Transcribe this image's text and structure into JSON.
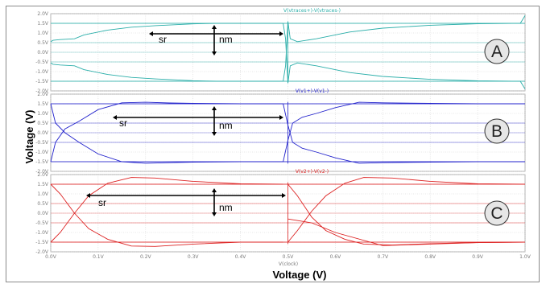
{
  "chart_data": {
    "type": "line",
    "title": "",
    "xlabel": "Voltage (V)",
    "ylabel": "Voltage (V)",
    "x_axis_caption": "V(clock)",
    "xlim": [
      0,
      1
    ],
    "ylim": [
      -2,
      2
    ],
    "grid": true,
    "x_ticks": [
      "0.0V",
      "0.1V",
      "0.2V",
      "0.3V",
      "0.4V",
      "0.5V",
      "0.6V",
      "0.7V",
      "0.8V",
      "0.9V",
      "1.0V"
    ],
    "y_ticks": [
      "2.0V",
      "1.5V",
      "1.0V",
      "0.5V",
      "0.0V",
      "-0.5V",
      "-1.0V",
      "-1.5V",
      "-2.0V"
    ],
    "panels": [
      {
        "badge": "A",
        "trace_label": "V(vtraces+)-V(vtraces-)",
        "color": "#2aaea9",
        "annotations": {
          "sr": "sr",
          "nm": "nm"
        },
        "series": [
          {
            "values": [
              [
                0,
                0.55
              ],
              [
                0.005,
                0.62
              ],
              [
                0.02,
                0.66
              ],
              [
                0.05,
                0.7
              ],
              [
                0.07,
                0.9
              ],
              [
                0.12,
                1.15
              ],
              [
                0.17,
                1.3
              ],
              [
                0.22,
                1.38
              ],
              [
                0.3,
                1.47
              ],
              [
                0.35,
                1.5
              ],
              [
                0.49,
                1.5
              ]
            ]
          },
          {
            "values": [
              [
                0,
                -0.55
              ],
              [
                0.005,
                -0.62
              ],
              [
                0.02,
                -0.66
              ],
              [
                0.05,
                -0.7
              ],
              [
                0.07,
                -0.9
              ],
              [
                0.12,
                -1.15
              ],
              [
                0.17,
                -1.3
              ],
              [
                0.22,
                -1.38
              ],
              [
                0.3,
                -1.47
              ],
              [
                0.35,
                -1.5
              ],
              [
                0.49,
                -1.5
              ]
            ]
          },
          {
            "values": [
              [
                0.49,
                1.5
              ],
              [
                0.495,
                0.7
              ],
              [
                0.5,
                -1.6
              ],
              [
                0.505,
                -0.7
              ],
              [
                0.52,
                -0.55
              ],
              [
                0.56,
                -0.7
              ],
              [
                0.63,
                -1.05
              ],
              [
                0.7,
                -1.25
              ],
              [
                0.8,
                -1.4
              ],
              [
                0.9,
                -1.48
              ],
              [
                0.99,
                -1.5
              ],
              [
                1.0,
                -1.9
              ]
            ]
          },
          {
            "values": [
              [
                0.49,
                -1.5
              ],
              [
                0.495,
                -0.7
              ],
              [
                0.5,
                1.6
              ],
              [
                0.505,
                0.7
              ],
              [
                0.52,
                0.55
              ],
              [
                0.56,
                0.7
              ],
              [
                0.63,
                1.05
              ],
              [
                0.7,
                1.25
              ],
              [
                0.8,
                1.4
              ],
              [
                0.9,
                1.48
              ],
              [
                0.99,
                1.5
              ],
              [
                1.0,
                1.9
              ]
            ]
          }
        ]
      },
      {
        "badge": "B",
        "trace_label": "V(v1+)-V(v1-)",
        "color": "#2222cc",
        "annotations": {
          "sr": "sr",
          "nm": "nm"
        },
        "series": [
          {
            "values": [
              [
                0,
                1.5
              ],
              [
                0.01,
                0.5
              ],
              [
                0.03,
                0.0
              ],
              [
                0.06,
                -0.5
              ],
              [
                0.1,
                -1.1
              ],
              [
                0.15,
                -1.5
              ],
              [
                0.2,
                -1.58
              ],
              [
                0.25,
                -1.55
              ],
              [
                0.3,
                -1.52
              ],
              [
                0.4,
                -1.5
              ],
              [
                0.49,
                -1.5
              ]
            ]
          },
          {
            "values": [
              [
                0,
                -1.5
              ],
              [
                0.01,
                -0.5
              ],
              [
                0.03,
                0.2
              ],
              [
                0.06,
                0.6
              ],
              [
                0.1,
                1.2
              ],
              [
                0.15,
                1.55
              ],
              [
                0.2,
                1.58
              ],
              [
                0.25,
                1.54
              ],
              [
                0.3,
                1.52
              ],
              [
                0.4,
                1.5
              ],
              [
                0.49,
                1.5
              ]
            ]
          },
          {
            "values": [
              [
                0.49,
                1.5
              ],
              [
                0.5,
                0.4
              ],
              [
                0.51,
                -0.5
              ],
              [
                0.53,
                -0.8
              ],
              [
                0.56,
                -1.0
              ],
              [
                0.6,
                -1.3
              ],
              [
                0.65,
                -1.58
              ],
              [
                0.7,
                -1.55
              ],
              [
                0.8,
                -1.52
              ],
              [
                0.9,
                -1.5
              ],
              [
                1.0,
                -1.5
              ]
            ]
          },
          {
            "values": [
              [
                0.49,
                -1.5
              ],
              [
                0.5,
                -0.4
              ],
              [
                0.51,
                0.5
              ],
              [
                0.53,
                0.8
              ],
              [
                0.56,
                1.0
              ],
              [
                0.6,
                1.3
              ],
              [
                0.65,
                1.58
              ],
              [
                0.7,
                1.55
              ],
              [
                0.8,
                1.52
              ],
              [
                0.9,
                1.5
              ],
              [
                1.0,
                1.5
              ]
            ]
          }
        ]
      },
      {
        "badge": "C",
        "trace_label": "V(v2+)-V(v2-)",
        "color": "#dd2222",
        "annotations": {
          "sr": "sr",
          "nm": "nm"
        },
        "series": [
          {
            "values": [
              [
                0,
                1.5
              ],
              [
                0.02,
                1.0
              ],
              [
                0.05,
                0.0
              ],
              [
                0.08,
                -0.8
              ],
              [
                0.12,
                -1.35
              ],
              [
                0.17,
                -1.7
              ],
              [
                0.22,
                -1.72
              ],
              [
                0.3,
                -1.6
              ],
              [
                0.4,
                -1.5
              ],
              [
                0.49,
                -1.5
              ]
            ]
          },
          {
            "values": [
              [
                0,
                -1.5
              ],
              [
                0.02,
                -1.0
              ],
              [
                0.05,
                0.0
              ],
              [
                0.08,
                0.9
              ],
              [
                0.12,
                1.55
              ],
              [
                0.17,
                1.85
              ],
              [
                0.22,
                1.82
              ],
              [
                0.3,
                1.65
              ],
              [
                0.4,
                1.52
              ],
              [
                0.49,
                1.5
              ]
            ]
          },
          {
            "values": [
              [
                0.5,
                -1.5
              ],
              [
                0.52,
                -0.9
              ],
              [
                0.55,
                0.1
              ],
              [
                0.58,
                0.9
              ],
              [
                0.62,
                1.55
              ],
              [
                0.66,
                1.85
              ],
              [
                0.72,
                1.82
              ],
              [
                0.8,
                1.65
              ],
              [
                0.9,
                1.52
              ],
              [
                1.0,
                1.5
              ]
            ]
          },
          {
            "values": [
              [
                0.5,
                1.5
              ],
              [
                0.52,
                0.9
              ],
              [
                0.55,
                -0.2
              ],
              [
                0.58,
                -0.9
              ],
              [
                0.62,
                -1.35
              ],
              [
                0.66,
                -1.6
              ],
              [
                0.72,
                -1.65
              ],
              [
                0.8,
                -1.58
              ],
              [
                0.9,
                -1.52
              ],
              [
                1.0,
                -1.5
              ]
            ]
          },
          {
            "values": [
              [
                0.5,
                -0.3
              ],
              [
                0.55,
                -0.5
              ],
              [
                0.6,
                -1.0
              ],
              [
                0.7,
                -1.68
              ],
              [
                0.8,
                -1.6
              ],
              [
                0.9,
                -1.52
              ],
              [
                1.0,
                -1.5
              ]
            ]
          }
        ]
      }
    ]
  }
}
